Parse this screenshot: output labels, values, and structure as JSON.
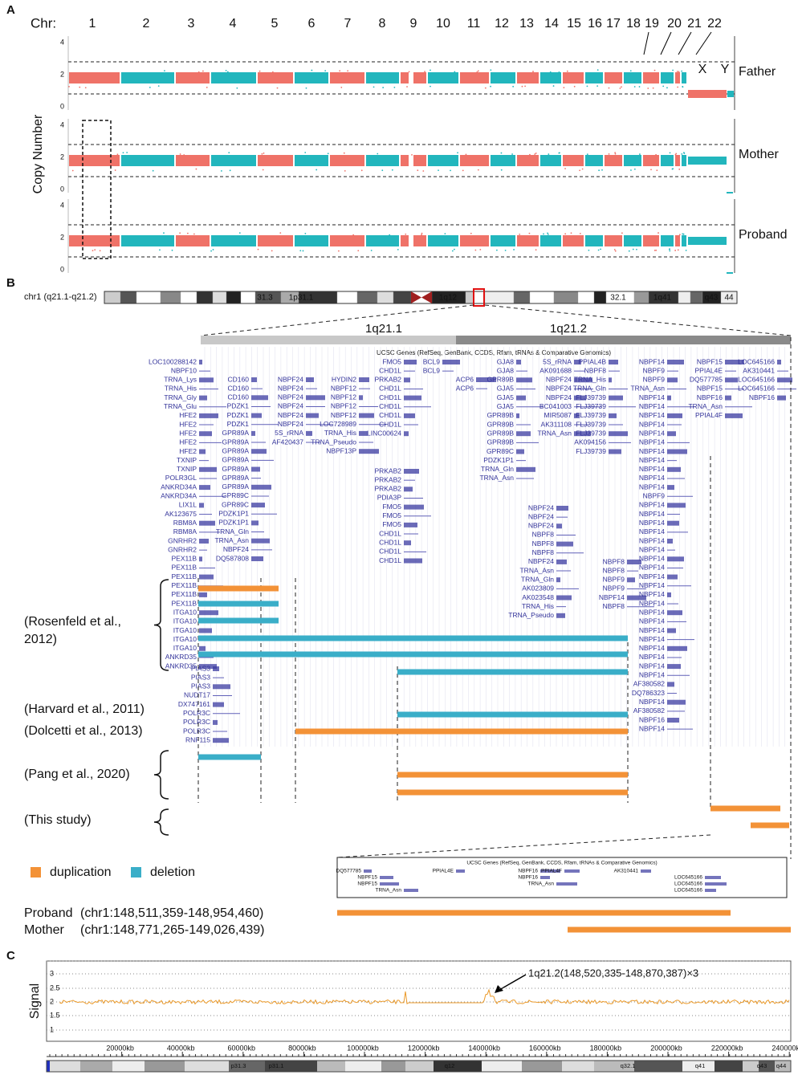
{
  "panels": {
    "a": "A",
    "b": "B",
    "c": "C"
  },
  "panel_a": {
    "chr_label": "Chr:",
    "chromosomes": [
      "1",
      "2",
      "3",
      "4",
      "5",
      "6",
      "7",
      "8",
      "9",
      "10",
      "11",
      "12",
      "13",
      "14",
      "15",
      "16",
      "17",
      "18",
      "19",
      "20",
      "21",
      "22"
    ],
    "sex_chromosomes": [
      "X",
      "Y"
    ],
    "y_axis_title": "Copy Number",
    "y_ticks": [
      "0",
      "2",
      "4"
    ],
    "samples": [
      "Father",
      "Mother",
      "Proband"
    ]
  },
  "panel_b": {
    "region": "chr1 (q21.1-q21.2)",
    "ideogram_bands": [
      "31.3",
      "1p31.1",
      "1q12",
      "32.1",
      "1q41",
      "q43",
      "44"
    ],
    "sub_bands": [
      "1q21.1",
      "1q21.2"
    ],
    "track_title": "UCSC Genes (RefSeq, GenBank, CCDS, Rfam, tRNAs & Comparative Genomics)",
    "gene_columns": [
      [
        "LOC100288142",
        "NBPF10",
        "TRNA_Lys",
        "TRNA_His",
        "TRNA_Gly",
        "TRNA_Glu",
        "HFE2",
        "HFE2",
        "HFE2",
        "HFE2",
        "HFE2",
        "TXNIP",
        "TXNIP",
        "POLR3GL",
        "ANKRD34A",
        "ANKRD34A",
        "LIX1L",
        "AK123675",
        "RBM8A",
        "RBM8A",
        "GNRHR2",
        "GNRHR2",
        "PEX11B",
        "PEX11B",
        "PEX11B",
        "PEX11B",
        "PEX11B",
        "PEX11B",
        "ITGA10",
        "ITGA10",
        "ITGA10",
        "ITGA10",
        "ITGA10",
        "ANKRD35",
        "ANKRD35"
      ],
      [
        "CD160",
        "CD160",
        "CD160",
        "PDZK1",
        "PDZK1",
        "PDZK1",
        "GPR89A",
        "GPR89A",
        "GPR89A",
        "GPR89A",
        "GPR89A",
        "GPR89A",
        "GPR89A",
        "GPR89C",
        "GPR89C",
        "PDZK1P1",
        "PDZK1P1",
        "TRNA_Gln",
        "TRNA_Asn",
        "NBPF24",
        "DQ587808"
      ],
      [
        "NBPF24",
        "NBPF24",
        "NBPF24",
        "NBPF24",
        "NBPF24",
        "NBPF24",
        "5S_rRNA",
        "AF420437"
      ],
      [
        "HYDIN2",
        "NBPF12",
        "NBPF12",
        "NBPF12",
        "NBPF12",
        "LOC728989",
        "TRNA_His",
        "TRNA_Pseudo",
        "NBPF13P"
      ],
      [
        "FMO5",
        "CHD1L",
        "PRKAB2",
        "CHD1L",
        "CHD1L",
        "CHD1L",
        "CHD1L",
        "CHD1L",
        "LINC00624"
      ],
      [
        "PRKAB2",
        "PRKAB2",
        "PRKAB2",
        "PDIA3P",
        "FMO5",
        "FMO5",
        "FMO5",
        "CHD1L",
        "CHD1L",
        "CHD1L",
        "CHD1L"
      ],
      [
        "BCL9",
        "BCL9"
      ],
      [
        "ACP6",
        "ACP6"
      ],
      [
        "GJA8",
        "GJA8",
        "GPR89B",
        "GJA5",
        "GJA5",
        "GJA5",
        "GPR89B",
        "GPR89B",
        "GPR89B",
        "GPR89B",
        "GPR89C",
        "PDZK1P1",
        "TRNA_Gln",
        "TRNA_Asn"
      ],
      [
        "5S_rRNA",
        "AK091688",
        "NBPF24",
        "NBPF24",
        "NBPF24",
        "BC041003",
        "MIR5087",
        "AK311108",
        "TRNA_Asn"
      ],
      [
        "PPIAL4B",
        "NBPF8",
        "TRNA_His",
        "TRNA_Gln",
        "FLJ39739",
        "FLJ39739",
        "FLJ39739",
        "FLJ39739",
        "FLJ39739",
        "AK094156",
        "FLJ39739"
      ],
      [
        "NBPF24",
        "NBPF24",
        "NBPF24",
        "NBPF8",
        "NBPF8",
        "NBPF8",
        "NBPF24",
        "TRNA_Asn",
        "TRNA_Gln",
        "AK023809",
        "AK023548",
        "TRNA_His",
        "TRNA_Pseudo"
      ],
      [
        "NBPF8",
        "NBPF8",
        "NBPF9",
        "NBPF9",
        "NBPF14",
        "NBPF8"
      ],
      [
        "NBPF14",
        "NBPF9",
        "NBPF9",
        "TRNA_Asn",
        "NBPF14",
        "NBPF14",
        "NBPF14",
        "NBPF14",
        "NBPF14",
        "NBPF14",
        "NBPF14",
        "NBPF14",
        "NBPF14",
        "NBPF14",
        "NBPF14",
        "NBPF9",
        "NBPF14",
        "NBPF14",
        "NBPF14",
        "NBPF14",
        "NBPF14",
        "NBPF14",
        "NBPF14",
        "NBPF14",
        "NBPF14",
        "NBPF14",
        "NBPF14",
        "NBPF14",
        "NBPF14",
        "NBPF14",
        "NBPF14",
        "NBPF14",
        "NBPF14",
        "NBPF14",
        "NBPF14",
        "NBPF14",
        "AF380582",
        "DQ786323",
        "NBPF14",
        "AF380582",
        "NBPF16",
        "NBPF14"
      ],
      [
        "NBPF15",
        "PPIAL4E",
        "DQ577785",
        "NBPF15",
        "NBPF16",
        "TRNA_Asn",
        "PPIAL4F"
      ],
      [
        "LOC645166",
        "AK310441",
        "LOC645166",
        "LOC645166",
        "NBPF16"
      ],
      [
        "PIAS3",
        "PIAS3",
        "PIAS3",
        "NUDT17",
        "DX747161",
        "POLR3C",
        "POLR3C",
        "POLR3C",
        "RNF115"
      ]
    ],
    "studies": [
      [
        "(Rosenfeld et al.,",
        "2012)"
      ],
      [
        "(Harvard et al., 2011)"
      ],
      [
        "(Dolcetti et al., 2013)"
      ],
      [
        "(Pang et al., 2020)"
      ],
      [
        "(This study)"
      ]
    ],
    "legend": [
      {
        "label": "duplication",
        "color": "#f39237"
      },
      {
        "label": "deletion",
        "color": "#3aaec8"
      }
    ],
    "inset": {
      "track_title": "UCSC Genes (RefSeq, GenBank, CCDS, Rfam, tRNAs & Comparative Genomics)",
      "genes": [
        "DQ577785",
        "NBPF15",
        "NBPF15",
        "PPIAL4E",
        "TRNA_Asn",
        "NBPF16",
        "NBPF16",
        "PPIAL4F",
        "TRNA_Asn",
        "AK310441",
        "LOC645166",
        "LOC645166",
        "LOC645166"
      ]
    },
    "cnvs": [
      {
        "sample": "Proband",
        "coords": "(chr1:148,511,359-148,954,460)"
      },
      {
        "sample": "Mother",
        "coords": "(chr1:148,771,265-149,026,439)"
      }
    ]
  },
  "panel_c": {
    "y_axis_title": "Signal",
    "y_ticks": [
      "3",
      "2.5",
      "2",
      "1.5",
      "1"
    ],
    "annotation": "1q21.2(148,520,335-148,870,387)×3",
    "x_ticks": [
      "20000kb",
      "40000kb",
      "60000kb",
      "80000kb",
      "100000kb",
      "120000kb",
      "140000kb",
      "160000kb",
      "180000kb",
      "200000kb",
      "220000kb",
      "240000kb"
    ],
    "ideogram_bands": [
      "p31.3",
      "p31.1",
      "q12",
      "q32.1",
      "q41",
      "q43",
      "q44"
    ]
  }
}
